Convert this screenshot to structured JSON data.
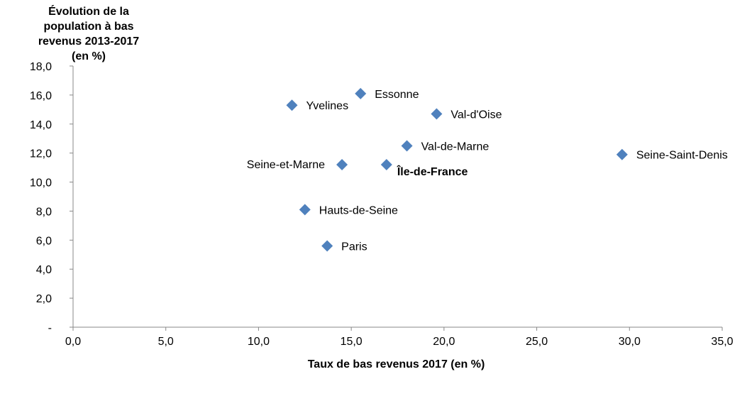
{
  "chart_data": {
    "type": "scatter",
    "title": "",
    "ylabel": "Évolution de la\npopulation à bas\nrevenus 2013-2017\n(en %)",
    "xlabel": "Taux de bas revenus 2017 (en %)",
    "xlim": [
      0,
      35
    ],
    "ylim": [
      0,
      18
    ],
    "x_ticks": [
      "0,0",
      "5,0",
      "10,0",
      "15,0",
      "20,0",
      "25,0",
      "30,0",
      "35,0"
    ],
    "y_ticks": [
      "-",
      "2,0",
      "4,0",
      "6,0",
      "8,0",
      "10,0",
      "12,0",
      "14,0",
      "16,0",
      "18,0"
    ],
    "grid": false,
    "marker_color": "#4f81bd",
    "points": [
      {
        "label": "Essonne",
        "x": 15.5,
        "y": 16.1,
        "label_pos": "right",
        "bold": false
      },
      {
        "label": "Yvelines",
        "x": 11.8,
        "y": 15.3,
        "label_pos": "right",
        "bold": false
      },
      {
        "label": "Val-d'Oise",
        "x": 19.6,
        "y": 14.7,
        "label_pos": "right",
        "bold": false
      },
      {
        "label": "Val-de-Marne",
        "x": 18.0,
        "y": 12.5,
        "label_pos": "right",
        "bold": false
      },
      {
        "label": "Seine-Saint-Denis",
        "x": 29.6,
        "y": 11.9,
        "label_pos": "right",
        "bold": false
      },
      {
        "label": "Seine-et-Marne",
        "x": 14.5,
        "y": 11.2,
        "label_pos": "left",
        "bold": false
      },
      {
        "label": "Île-de-France",
        "x": 16.9,
        "y": 11.2,
        "label_pos": "right-below",
        "bold": true
      },
      {
        "label": "Hauts-de-Seine",
        "x": 12.5,
        "y": 8.1,
        "label_pos": "right",
        "bold": false
      },
      {
        "label": "Paris",
        "x": 13.7,
        "y": 5.6,
        "label_pos": "right",
        "bold": false
      }
    ]
  }
}
